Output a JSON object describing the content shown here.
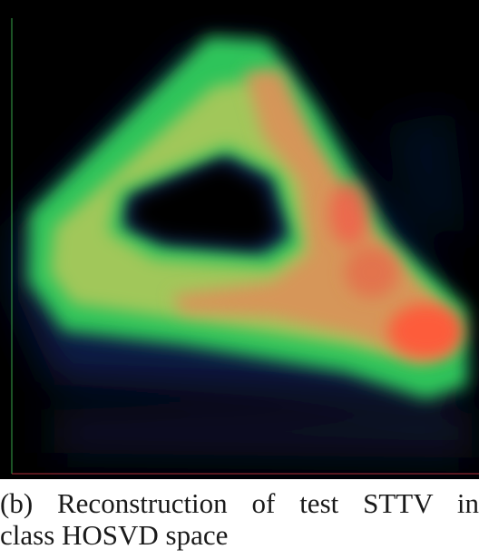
{
  "figure": {
    "caption_line_1": "(b) Reconstruction of test STTV in",
    "caption_line_2": "class HOSVD space"
  },
  "colors": {
    "background": "#000000",
    "low": "#0d1a40",
    "mid": "#2ecf5a",
    "high_mid": "#e0a050",
    "high": "#ff5a3a",
    "axis_y": "#39a64a",
    "axis_x": "#b0303a"
  }
}
